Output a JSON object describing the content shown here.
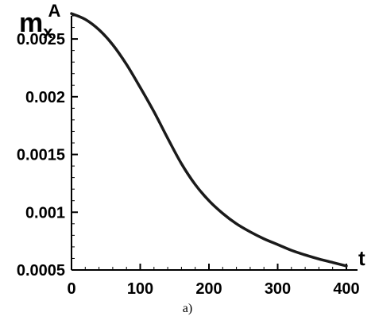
{
  "chart_data": {
    "type": "line",
    "ylabel": {
      "base": "m",
      "sub": "x",
      "sup": "A"
    },
    "xlabel": "t",
    "xlim": [
      0,
      400
    ],
    "ylim": [
      0.0005,
      0.0027
    ],
    "xticks": [
      {
        "value": 0,
        "label": "0"
      },
      {
        "value": 100,
        "label": "100"
      },
      {
        "value": 200,
        "label": "200"
      },
      {
        "value": 300,
        "label": "300"
      },
      {
        "value": 400,
        "label": "400"
      }
    ],
    "yticks": [
      {
        "value": 0.0005,
        "label": "0.0005"
      },
      {
        "value": 0.001,
        "label": "0.001"
      },
      {
        "value": 0.0015,
        "label": "0.0015"
      },
      {
        "value": 0.002,
        "label": "0.002"
      },
      {
        "value": 0.0025,
        "label": "0.0025"
      }
    ],
    "series": [
      {
        "color": "#1a1a1a",
        "x": [
          0,
          20,
          40,
          60,
          80,
          100,
          120,
          140,
          160,
          180,
          200,
          220,
          240,
          260,
          280,
          300,
          320,
          340,
          360,
          380,
          400
        ],
        "y": [
          0.00272,
          0.00267,
          0.00258,
          0.00245,
          0.00228,
          0.00208,
          0.00187,
          0.00164,
          0.00142,
          0.00124,
          0.0011,
          0.00099,
          0.0009,
          0.00083,
          0.00077,
          0.00072,
          0.00067,
          0.00063,
          0.000595,
          0.000565,
          0.000535
        ]
      }
    ],
    "grid": false,
    "legend": "none"
  },
  "caption": "a)"
}
